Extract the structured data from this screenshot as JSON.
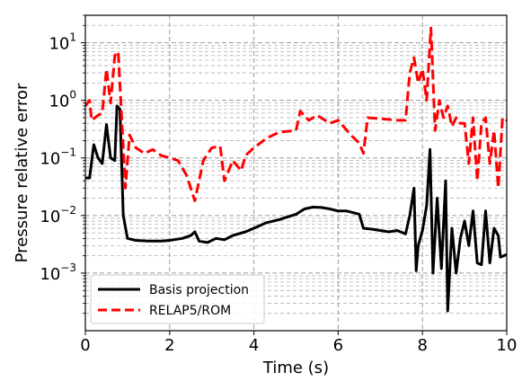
{
  "chart_data": {
    "type": "line",
    "xlabel": "Time (s)",
    "ylabel": "Pressure relative error",
    "xlim": [
      0,
      10
    ],
    "ylim": [
      0.0001,
      30
    ],
    "yscale": "log",
    "grid": true,
    "legend_position": "bottom-left",
    "x_ticks": [
      "0",
      "2",
      "4",
      "6",
      "8",
      "10"
    ],
    "y_ticks": [
      {
        "value": 10,
        "base": "10",
        "exp": "1"
      },
      {
        "value": 1,
        "base": "10",
        "exp": "0"
      },
      {
        "value": 0.1,
        "base": "10",
        "exp": "−1"
      },
      {
        "value": 0.01,
        "base": "10",
        "exp": "−2"
      },
      {
        "value": 0.001,
        "base": "10",
        "exp": "−3"
      }
    ],
    "series": [
      {
        "name": "Basis projection",
        "color": "#000000",
        "dash": "solid",
        "points": [
          [
            0.0,
            0.045
          ],
          [
            0.1,
            0.045
          ],
          [
            0.2,
            0.17
          ],
          [
            0.3,
            0.1
          ],
          [
            0.4,
            0.08
          ],
          [
            0.5,
            0.38
          ],
          [
            0.6,
            0.1
          ],
          [
            0.7,
            0.09
          ],
          [
            0.75,
            0.8
          ],
          [
            0.82,
            0.7
          ],
          [
            0.9,
            0.01
          ],
          [
            1.0,
            0.004
          ],
          [
            1.2,
            0.0037
          ],
          [
            1.5,
            0.0036
          ],
          [
            1.8,
            0.0036
          ],
          [
            2.0,
            0.0037
          ],
          [
            2.3,
            0.004
          ],
          [
            2.5,
            0.0045
          ],
          [
            2.6,
            0.0052
          ],
          [
            2.7,
            0.0036
          ],
          [
            2.9,
            0.0034
          ],
          [
            3.1,
            0.004
          ],
          [
            3.3,
            0.0038
          ],
          [
            3.5,
            0.0045
          ],
          [
            3.8,
            0.0052
          ],
          [
            4.0,
            0.006
          ],
          [
            4.3,
            0.0075
          ],
          [
            4.6,
            0.0085
          ],
          [
            4.8,
            0.0095
          ],
          [
            5.0,
            0.0105
          ],
          [
            5.2,
            0.013
          ],
          [
            5.4,
            0.014
          ],
          [
            5.6,
            0.0138
          ],
          [
            5.8,
            0.013
          ],
          [
            6.0,
            0.012
          ],
          [
            6.2,
            0.012
          ],
          [
            6.4,
            0.011
          ],
          [
            6.5,
            0.0105
          ],
          [
            6.6,
            0.006
          ],
          [
            6.8,
            0.0058
          ],
          [
            7.0,
            0.0055
          ],
          [
            7.2,
            0.0052
          ],
          [
            7.4,
            0.0055
          ],
          [
            7.6,
            0.0048
          ],
          [
            7.7,
            0.01
          ],
          [
            7.8,
            0.03
          ],
          [
            7.85,
            0.0011
          ],
          [
            7.9,
            0.003
          ],
          [
            8.0,
            0.0055
          ],
          [
            8.1,
            0.015
          ],
          [
            8.18,
            0.14
          ],
          [
            8.25,
            0.001
          ],
          [
            8.35,
            0.02
          ],
          [
            8.45,
            0.0012
          ],
          [
            8.55,
            0.04
          ],
          [
            8.6,
            0.00022
          ],
          [
            8.7,
            0.006
          ],
          [
            8.8,
            0.001
          ],
          [
            8.9,
            0.004
          ],
          [
            9.0,
            0.008
          ],
          [
            9.1,
            0.003
          ],
          [
            9.2,
            0.012
          ],
          [
            9.3,
            0.0015
          ],
          [
            9.4,
            0.0014
          ],
          [
            9.5,
            0.012
          ],
          [
            9.6,
            0.0015
          ],
          [
            9.7,
            0.006
          ],
          [
            9.8,
            0.0045
          ],
          [
            9.85,
            0.0019
          ],
          [
            10.0,
            0.0021
          ]
        ]
      },
      {
        "name": "RELAP5/ROM",
        "color": "#ff0000",
        "dash": "dashed",
        "points": [
          [
            0.0,
            0.8
          ],
          [
            0.1,
            1.0
          ],
          [
            0.15,
            0.45
          ],
          [
            0.3,
            0.55
          ],
          [
            0.4,
            0.6
          ],
          [
            0.5,
            3.5
          ],
          [
            0.6,
            0.9
          ],
          [
            0.7,
            6.0
          ],
          [
            0.78,
            7.0
          ],
          [
            0.85,
            0.7
          ],
          [
            0.95,
            0.03
          ],
          [
            1.05,
            0.25
          ],
          [
            1.2,
            0.15
          ],
          [
            1.4,
            0.12
          ],
          [
            1.6,
            0.14
          ],
          [
            1.8,
            0.11
          ],
          [
            2.0,
            0.1
          ],
          [
            2.2,
            0.09
          ],
          [
            2.4,
            0.05
          ],
          [
            2.6,
            0.018
          ],
          [
            2.8,
            0.09
          ],
          [
            3.0,
            0.15
          ],
          [
            3.2,
            0.16
          ],
          [
            3.3,
            0.04
          ],
          [
            3.5,
            0.09
          ],
          [
            3.7,
            0.06
          ],
          [
            3.8,
            0.11
          ],
          [
            4.0,
            0.15
          ],
          [
            4.3,
            0.22
          ],
          [
            4.6,
            0.28
          ],
          [
            5.0,
            0.3
          ],
          [
            5.1,
            0.65
          ],
          [
            5.3,
            0.45
          ],
          [
            5.5,
            0.55
          ],
          [
            5.8,
            0.4
          ],
          [
            6.0,
            0.45
          ],
          [
            6.3,
            0.25
          ],
          [
            6.5,
            0.18
          ],
          [
            6.6,
            0.12
          ],
          [
            6.7,
            0.5
          ],
          [
            7.0,
            0.48
          ],
          [
            7.4,
            0.45
          ],
          [
            7.6,
            0.45
          ],
          [
            7.7,
            3.0
          ],
          [
            7.8,
            5.5
          ],
          [
            7.9,
            2.0
          ],
          [
            8.0,
            3.5
          ],
          [
            8.1,
            1.0
          ],
          [
            8.2,
            18.0
          ],
          [
            8.3,
            0.3
          ],
          [
            8.4,
            1.0
          ],
          [
            8.5,
            0.5
          ],
          [
            8.6,
            0.8
          ],
          [
            8.7,
            0.35
          ],
          [
            8.8,
            0.5
          ],
          [
            8.9,
            0.4
          ],
          [
            9.0,
            0.4
          ],
          [
            9.1,
            0.08
          ],
          [
            9.2,
            0.5
          ],
          [
            9.3,
            0.04
          ],
          [
            9.4,
            0.4
          ],
          [
            9.5,
            0.5
          ],
          [
            9.6,
            0.08
          ],
          [
            9.7,
            0.3
          ],
          [
            9.8,
            0.03
          ],
          [
            9.9,
            0.5
          ],
          [
            10.0,
            0.45
          ]
        ]
      }
    ]
  }
}
